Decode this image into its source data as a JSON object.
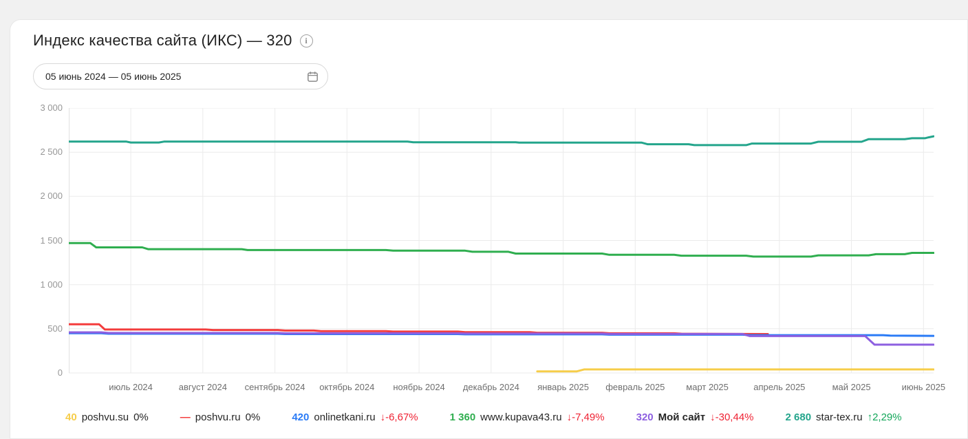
{
  "header": {
    "title": "Индекс качества сайта (ИКС) — 320",
    "info_icon": "i",
    "date_range": "05 июнь 2024 — 05 июнь 2025"
  },
  "colors": {
    "change_down": "#ef2233",
    "change_up": "#12a659",
    "change_flat": "#262626",
    "grid": "#ebebeb"
  },
  "chart_data": {
    "type": "line",
    "title": "Индекс качества сайта (ИКС)",
    "legend_position": "bottom",
    "grid": true,
    "y_axis": {
      "min": 0,
      "max": 3000,
      "tick_values": [
        0,
        500,
        1000,
        1500,
        2000,
        2500,
        3000
      ],
      "tick_labels": [
        "0",
        "500",
        "1 000",
        "1 500",
        "2 000",
        "2 500",
        "3 000"
      ]
    },
    "x_axis": {
      "start": "05 июнь 2024",
      "end": "05 июнь 2025",
      "range_months": [
        0,
        12
      ],
      "tick_labels": [
        "июль 2024",
        "август 2024",
        "сентябрь 2024",
        "октябрь 2024",
        "ноябрь 2024",
        "декабрь 2024",
        "январь 2025",
        "февраль 2025",
        "март 2025",
        "апрель 2025",
        "май 2025",
        "июнь 2025"
      ],
      "tick_months": [
        0.86,
        1.86,
        2.86,
        3.86,
        4.86,
        5.86,
        6.86,
        7.86,
        8.86,
        9.86,
        10.86,
        11.86
      ]
    },
    "series": [
      {
        "name": "poshvu.su",
        "color": "#f6cd4a",
        "current": "40",
        "change": "0%",
        "change_kind": "flat",
        "name_bold": false,
        "points": [
          [
            6.5,
            18
          ],
          [
            7.05,
            18
          ],
          [
            7.15,
            40
          ],
          [
            12,
            40
          ]
        ]
      },
      {
        "name": "poshvu.ru",
        "color": "#f43c3c",
        "current": "—",
        "change": "0%",
        "change_kind": "flat",
        "name_bold": false,
        "points": [
          [
            0,
            552
          ],
          [
            0.42,
            552
          ],
          [
            0.5,
            492
          ],
          [
            1.9,
            492
          ],
          [
            2.0,
            486
          ],
          [
            2.9,
            486
          ],
          [
            3.0,
            480
          ],
          [
            3.4,
            480
          ],
          [
            3.5,
            474
          ],
          [
            4.4,
            474
          ],
          [
            4.5,
            468
          ],
          [
            5.4,
            468
          ],
          [
            5.5,
            461
          ],
          [
            6.4,
            461
          ],
          [
            6.5,
            455
          ],
          [
            7.4,
            455
          ],
          [
            7.5,
            449
          ],
          [
            8.4,
            449
          ],
          [
            8.5,
            444
          ],
          [
            9.0,
            442
          ],
          [
            9.7,
            440
          ]
        ]
      },
      {
        "name": "onlinetkani.ru",
        "color": "#2a7bf6",
        "current": "420",
        "change": "↓-6,67%",
        "change_kind": "down",
        "name_bold": false,
        "points": [
          [
            0,
            450
          ],
          [
            0.45,
            450
          ],
          [
            0.55,
            444
          ],
          [
            2.9,
            444
          ],
          [
            3.0,
            440
          ],
          [
            5.4,
            440
          ],
          [
            5.5,
            437
          ],
          [
            7.4,
            437
          ],
          [
            7.5,
            433
          ],
          [
            9.35,
            433
          ],
          [
            9.45,
            428
          ],
          [
            11.3,
            428
          ],
          [
            11.4,
            423
          ],
          [
            12,
            420
          ]
        ]
      },
      {
        "name": "www.kupava43.ru",
        "color": "#2fae4f",
        "current": "1 360",
        "change": "↓-7,49%",
        "change_kind": "down",
        "name_bold": false,
        "points": [
          [
            0,
            1470
          ],
          [
            0.3,
            1470
          ],
          [
            0.38,
            1422
          ],
          [
            1.02,
            1422
          ],
          [
            1.1,
            1402
          ],
          [
            2.4,
            1402
          ],
          [
            2.48,
            1392
          ],
          [
            4.4,
            1392
          ],
          [
            4.5,
            1385
          ],
          [
            5.5,
            1385
          ],
          [
            5.6,
            1372
          ],
          [
            6.1,
            1372
          ],
          [
            6.2,
            1352
          ],
          [
            7.4,
            1352
          ],
          [
            7.5,
            1338
          ],
          [
            8.4,
            1338
          ],
          [
            8.5,
            1328
          ],
          [
            9.4,
            1328
          ],
          [
            9.5,
            1318
          ],
          [
            10.3,
            1318
          ],
          [
            10.4,
            1332
          ],
          [
            11.1,
            1332
          ],
          [
            11.2,
            1345
          ],
          [
            11.6,
            1345
          ],
          [
            11.7,
            1360
          ],
          [
            12,
            1360
          ]
        ]
      },
      {
        "name": "Мой сайт",
        "color": "#8d5fe0",
        "current": "320",
        "change": "↓-30,44%",
        "change_kind": "down",
        "name_bold": true,
        "points": [
          [
            0,
            460
          ],
          [
            0.45,
            460
          ],
          [
            0.55,
            453
          ],
          [
            2.9,
            453
          ],
          [
            3.0,
            449
          ],
          [
            5.4,
            449
          ],
          [
            5.5,
            446
          ],
          [
            7.4,
            446
          ],
          [
            7.5,
            441
          ],
          [
            9.35,
            441
          ],
          [
            9.45,
            418
          ],
          [
            11.05,
            418
          ],
          [
            11.18,
            320
          ],
          [
            12,
            320
          ]
        ]
      },
      {
        "name": "star-tex.ru",
        "color": "#24a58c",
        "current": "2 680",
        "change": "↑2,29%",
        "change_kind": "up",
        "name_bold": false,
        "points": [
          [
            0,
            2620
          ],
          [
            0.8,
            2620
          ],
          [
            0.86,
            2610
          ],
          [
            1.25,
            2610
          ],
          [
            1.32,
            2620
          ],
          [
            4.7,
            2620
          ],
          [
            4.78,
            2612
          ],
          [
            6.2,
            2612
          ],
          [
            6.25,
            2608
          ],
          [
            7.95,
            2608
          ],
          [
            8.03,
            2590
          ],
          [
            8.6,
            2590
          ],
          [
            8.68,
            2580
          ],
          [
            9.4,
            2580
          ],
          [
            9.48,
            2598
          ],
          [
            10.3,
            2598
          ],
          [
            10.4,
            2618
          ],
          [
            11.0,
            2618
          ],
          [
            11.1,
            2648
          ],
          [
            11.6,
            2648
          ],
          [
            11.7,
            2658
          ],
          [
            11.88,
            2658
          ],
          [
            11.93,
            2668
          ],
          [
            12,
            2680
          ]
        ]
      }
    ]
  }
}
